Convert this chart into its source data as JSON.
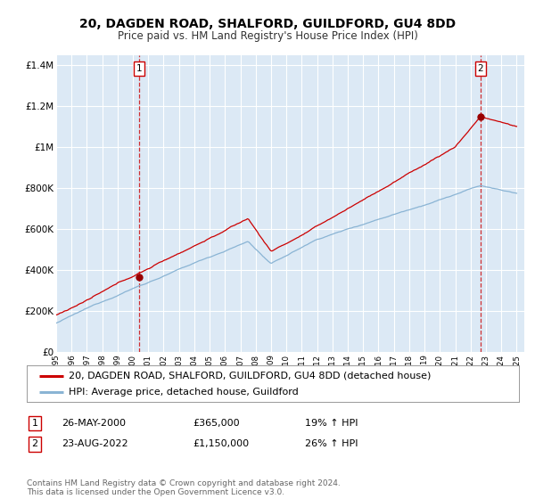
{
  "title": "20, DAGDEN ROAD, SHALFORD, GUILDFORD, GU4 8DD",
  "subtitle": "Price paid vs. HM Land Registry's House Price Index (HPI)",
  "bg_color": "#dce9f5",
  "outer_bg_color": "#ffffff",
  "red_line_color": "#cc0000",
  "blue_line_color": "#8ab4d4",
  "grid_color": "#ffffff",
  "xmin": 1995.0,
  "xmax": 2025.5,
  "ymin": 0,
  "ymax": 1450000,
  "yticks": [
    0,
    200000,
    400000,
    600000,
    800000,
    1000000,
    1200000,
    1400000
  ],
  "ytick_labels": [
    "£0",
    "£200K",
    "£400K",
    "£600K",
    "£800K",
    "£1M",
    "£1.2M",
    "£1.4M"
  ],
  "sale1_x": 2000.4,
  "sale1_y": 365000,
  "sale2_x": 2022.65,
  "sale2_y": 1150000,
  "legend_red_label": "20, DAGDEN ROAD, SHALFORD, GUILDFORD, GU4 8DD (detached house)",
  "legend_blue_label": "HPI: Average price, detached house, Guildford",
  "table_row1": [
    "1",
    "26-MAY-2000",
    "£365,000",
    "19% ↑ HPI"
  ],
  "table_row2": [
    "2",
    "23-AUG-2022",
    "£1,150,000",
    "26% ↑ HPI"
  ],
  "footer_text": "Contains HM Land Registry data © Crown copyright and database right 2024.\nThis data is licensed under the Open Government Licence v3.0.",
  "title_fontsize": 10,
  "subtitle_fontsize": 8.5,
  "axis_fontsize": 7.5,
  "legend_fontsize": 8,
  "table_fontsize": 8,
  "footer_fontsize": 6.5
}
